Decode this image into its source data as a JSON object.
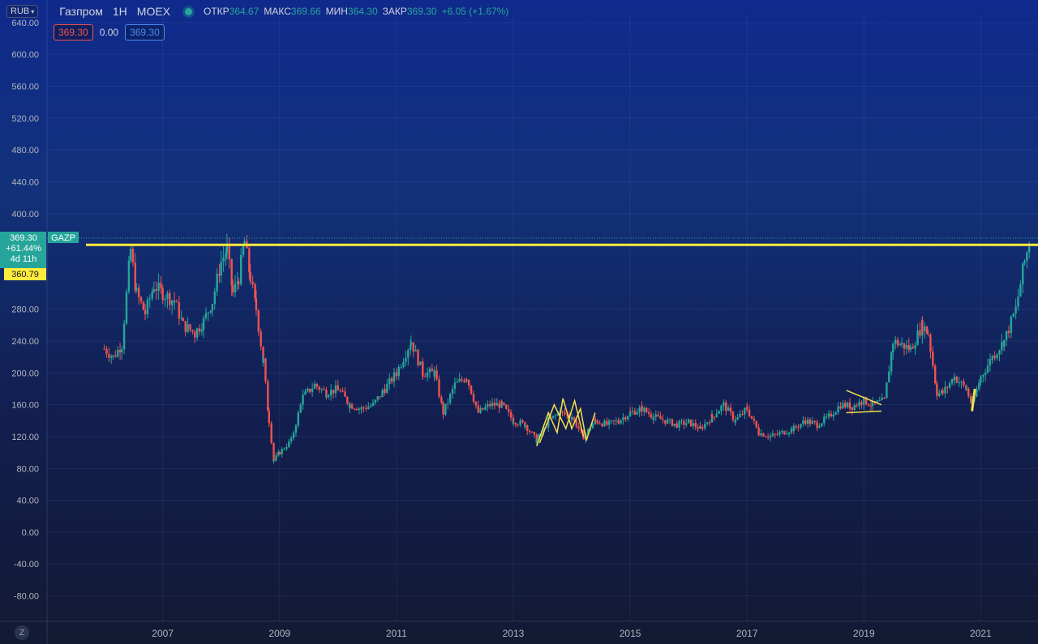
{
  "header": {
    "currency": "RUB",
    "symbol_name": "Газпром",
    "timeframe": "1H",
    "exchange": "MOEX",
    "ohlc": [
      {
        "key": "ОТКР",
        "value": "364.67"
      },
      {
        "key": "МАКС",
        "value": "369.66"
      },
      {
        "key": "МИН",
        "value": "364.30"
      },
      {
        "key": "ЗАКР",
        "value": "369.30"
      }
    ],
    "change": "+6.05 (+1.67%)"
  },
  "trade": {
    "sell": "369.30",
    "spread": "0.00",
    "buy": "369.30"
  },
  "price_label": {
    "ticker": "GAZP",
    "price": "369.30",
    "change": "+61.44%",
    "countdown": "4d 11h",
    "line_price": "360.79"
  },
  "zoom_label": "Z",
  "colors": {
    "up": "#26a69a",
    "down": "#ef5350",
    "drawing": "#f5e04a",
    "line": "#ffeb3b"
  },
  "chart_data": {
    "type": "candlestick",
    "y_ticks": [
      -80,
      -40,
      0,
      40,
      80,
      120,
      160,
      200,
      240,
      280,
      400,
      440,
      480,
      520,
      560,
      600,
      640
    ],
    "y_tick_labels": [
      "-80.00",
      "-40.00",
      "0.00",
      "40.00",
      "80.00",
      "120.00",
      "160.00",
      "200.00",
      "240.00",
      "280.00",
      "400.00",
      "440.00",
      "480.00",
      "520.00",
      "560.00",
      "600.00",
      "640.00"
    ],
    "ylim": [
      -112,
      648
    ],
    "x_ticks": [
      2007,
      2009,
      2011,
      2013,
      2015,
      2017,
      2019,
      2021
    ],
    "x_tick_labels": [
      "2007",
      "2009",
      "2011",
      "2013",
      "2015",
      "2017",
      "2019",
      "2021"
    ],
    "xlim": [
      2005.02,
      2021.98
    ],
    "series": [
      {
        "points": [
          [
            2006.0,
            230
          ],
          [
            2006.15,
            220
          ],
          [
            2006.3,
            235
          ],
          [
            2006.45,
            355
          ],
          [
            2006.55,
            300
          ],
          [
            2006.7,
            275
          ],
          [
            2006.85,
            310
          ],
          [
            2007.0,
            300
          ],
          [
            2007.2,
            290
          ],
          [
            2007.35,
            260
          ],
          [
            2007.55,
            250
          ],
          [
            2007.7,
            265
          ],
          [
            2007.85,
            290
          ],
          [
            2008.0,
            340
          ],
          [
            2008.1,
            355
          ],
          [
            2008.2,
            300
          ],
          [
            2008.3,
            320
          ],
          [
            2008.4,
            365
          ],
          [
            2008.5,
            320
          ],
          [
            2008.6,
            280
          ],
          [
            2008.72,
            215
          ],
          [
            2008.82,
            140
          ],
          [
            2008.9,
            90
          ],
          [
            2009.0,
            100
          ],
          [
            2009.2,
            115
          ],
          [
            2009.4,
            170
          ],
          [
            2009.6,
            185
          ],
          [
            2009.8,
            175
          ],
          [
            2010.0,
            180
          ],
          [
            2010.2,
            160
          ],
          [
            2010.4,
            155
          ],
          [
            2010.6,
            160
          ],
          [
            2010.8,
            180
          ],
          [
            2011.0,
            200
          ],
          [
            2011.25,
            240
          ],
          [
            2011.45,
            200
          ],
          [
            2011.65,
            200
          ],
          [
            2011.8,
            150
          ],
          [
            2012.0,
            185
          ],
          [
            2012.2,
            195
          ],
          [
            2012.4,
            150
          ],
          [
            2012.6,
            160
          ],
          [
            2012.8,
            160
          ],
          [
            2013.0,
            140
          ],
          [
            2013.2,
            135
          ],
          [
            2013.4,
            115
          ],
          [
            2013.6,
            140
          ],
          [
            2013.8,
            150
          ],
          [
            2014.0,
            145
          ],
          [
            2014.2,
            120
          ],
          [
            2014.4,
            140
          ],
          [
            2014.6,
            135
          ],
          [
            2014.8,
            140
          ],
          [
            2015.0,
            150
          ],
          [
            2015.2,
            155
          ],
          [
            2015.4,
            145
          ],
          [
            2015.6,
            140
          ],
          [
            2015.8,
            135
          ],
          [
            2016.0,
            138
          ],
          [
            2016.2,
            130
          ],
          [
            2016.4,
            145
          ],
          [
            2016.6,
            160
          ],
          [
            2016.8,
            140
          ],
          [
            2017.0,
            155
          ],
          [
            2017.2,
            125
          ],
          [
            2017.4,
            120
          ],
          [
            2017.6,
            125
          ],
          [
            2017.8,
            130
          ],
          [
            2018.0,
            140
          ],
          [
            2018.2,
            135
          ],
          [
            2018.4,
            145
          ],
          [
            2018.6,
            160
          ],
          [
            2018.8,
            158
          ],
          [
            2019.0,
            165
          ],
          [
            2019.15,
            160
          ],
          [
            2019.35,
            165
          ],
          [
            2019.5,
            240
          ],
          [
            2019.65,
            235
          ],
          [
            2019.8,
            230
          ],
          [
            2020.0,
            260
          ],
          [
            2020.1,
            250
          ],
          [
            2020.25,
            175
          ],
          [
            2020.35,
            175
          ],
          [
            2020.55,
            195
          ],
          [
            2020.75,
            180
          ],
          [
            2020.85,
            160
          ],
          [
            2021.0,
            195
          ],
          [
            2021.2,
            220
          ],
          [
            2021.4,
            240
          ],
          [
            2021.6,
            280
          ],
          [
            2021.75,
            340
          ],
          [
            2021.85,
            369.3
          ]
        ]
      }
    ],
    "horizontal_line": 360.79,
    "last_price": 369.3,
    "drawings": [
      {
        "kind": "zigzag",
        "points": [
          [
            2013.4,
            108
          ],
          [
            2013.6,
            150
          ],
          [
            2013.75,
            125
          ],
          [
            2013.85,
            168
          ],
          [
            2014.0,
            130
          ],
          [
            2014.15,
            155
          ],
          [
            2014.25,
            115
          ],
          [
            2014.4,
            150
          ]
        ]
      },
      {
        "kind": "zigzag",
        "points": [
          [
            2013.45,
            112
          ],
          [
            2013.7,
            160
          ],
          [
            2013.9,
            130
          ],
          [
            2014.05,
            165
          ],
          [
            2014.2,
            120
          ]
        ]
      },
      {
        "kind": "triangle",
        "points": [
          [
            2018.7,
            178
          ],
          [
            2019.3,
            160
          ],
          [
            2018.7,
            150
          ],
          [
            2019.3,
            152
          ]
        ]
      },
      {
        "kind": "segment",
        "points": [
          [
            2020.85,
            152
          ],
          [
            2020.9,
            180
          ]
        ]
      }
    ]
  }
}
